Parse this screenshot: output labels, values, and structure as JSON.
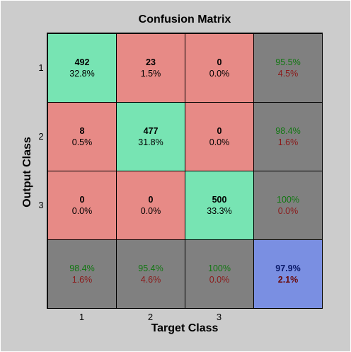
{
  "colors": {
    "background": "#cccccc",
    "correct": "#77e4b3",
    "incorrect": "#e78a86",
    "summary": "#808080",
    "overall": "#7a8fe2"
  },
  "chart_data": {
    "type": "heatmap",
    "title": "Confusion Matrix",
    "xlabel": "Target Class",
    "ylabel": "Output Class",
    "x_ticks": [
      "1",
      "2",
      "3"
    ],
    "y_ticks": [
      "1",
      "2",
      "3"
    ],
    "matrix": [
      [
        {
          "count": "492",
          "pct": "32.8%"
        },
        {
          "count": "23",
          "pct": "1.5%"
        },
        {
          "count": "0",
          "pct": "0.0%"
        }
      ],
      [
        {
          "count": "8",
          "pct": "0.5%"
        },
        {
          "count": "477",
          "pct": "31.8%"
        },
        {
          "count": "0",
          "pct": "0.0%"
        }
      ],
      [
        {
          "count": "0",
          "pct": "0.0%"
        },
        {
          "count": "0",
          "pct": "0.0%"
        },
        {
          "count": "500",
          "pct": "33.3%"
        }
      ]
    ],
    "row_summary": [
      {
        "correct": "95.5%",
        "error": "4.5%"
      },
      {
        "correct": "98.4%",
        "error": "1.6%"
      },
      {
        "correct": "100%",
        "error": "0.0%"
      }
    ],
    "col_summary": [
      {
        "correct": "98.4%",
        "error": "1.6%"
      },
      {
        "correct": "95.4%",
        "error": "4.6%"
      },
      {
        "correct": "100%",
        "error": "0.0%"
      }
    ],
    "overall": {
      "correct": "97.9%",
      "error": "2.1%"
    }
  }
}
